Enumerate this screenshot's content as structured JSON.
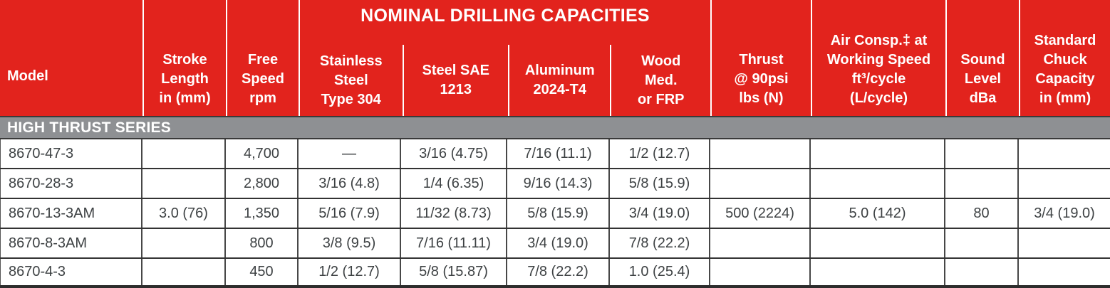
{
  "colors": {
    "header_red": "#e2231d",
    "series_gray": "#8e9093",
    "header_text": "#ffffff",
    "data_text": "#3d4143",
    "grid_line": "#3a3a3a"
  },
  "header": {
    "group_title": "NOMINAL DRILLING CAPACITIES",
    "model": "Model",
    "stroke": "Stroke\nLength\nin (mm)",
    "speed": "Free\nSpeed\nrpm",
    "stainless": "Stainless\nSteel\nType 304",
    "sae": "Steel SAE\n1213",
    "aluminum": "Aluminum\n2024-T4",
    "wood": "Wood\nMed.\nor FRP",
    "thrust": "Thrust\n@ 90psi\nlbs (N)",
    "air": "Air Consp.‡ at\nWorking Speed\nft³/cycle\n(L/cycle)",
    "sound": "Sound\nLevel\ndBa",
    "chuck": "Standard\nChuck\nCapacity\nin (mm)"
  },
  "section": {
    "label": "HIGH THRUST SERIES"
  },
  "rows": [
    {
      "model": "8670-47-3",
      "stroke": "",
      "speed": "4,700",
      "stainless": "—",
      "sae": "3/16 (4.75)",
      "aluminum": "7/16 (11.1)",
      "wood": "1/2 (12.7)",
      "thrust": "",
      "air": "",
      "sound": "",
      "chuck": ""
    },
    {
      "model": "8670-28-3",
      "stroke": "",
      "speed": "2,800",
      "stainless": "3/16 (4.8)",
      "sae": "1/4 (6.35)",
      "aluminum": "9/16 (14.3)",
      "wood": "5/8 (15.9)",
      "thrust": "",
      "air": "",
      "sound": "",
      "chuck": ""
    },
    {
      "model": "8670-13-3AM",
      "stroke": "3.0 (76)",
      "speed": "1,350",
      "stainless": "5/16 (7.9)",
      "sae": "11/32 (8.73)",
      "aluminum": "5/8 (15.9)",
      "wood": "3/4 (19.0)",
      "thrust": "500 (2224)",
      "air": "5.0 (142)",
      "sound": "80",
      "chuck": "3/4 (19.0)"
    },
    {
      "model": "8670-8-3AM",
      "stroke": "",
      "speed": "800",
      "stainless": "3/8 (9.5)",
      "sae": "7/16 (11.11)",
      "aluminum": "3/4 (19.0)",
      "wood": "7/8 (22.2)",
      "thrust": "",
      "air": "",
      "sound": "",
      "chuck": ""
    },
    {
      "model": "8670-4-3",
      "stroke": "",
      "speed": "450",
      "stainless": "1/2 (12.7)",
      "sae": "5/8 (15.87)",
      "aluminum": "7/8 (22.2)",
      "wood": "1.0 (25.4)",
      "thrust": "",
      "air": "",
      "sound": "",
      "chuck": ""
    }
  ]
}
